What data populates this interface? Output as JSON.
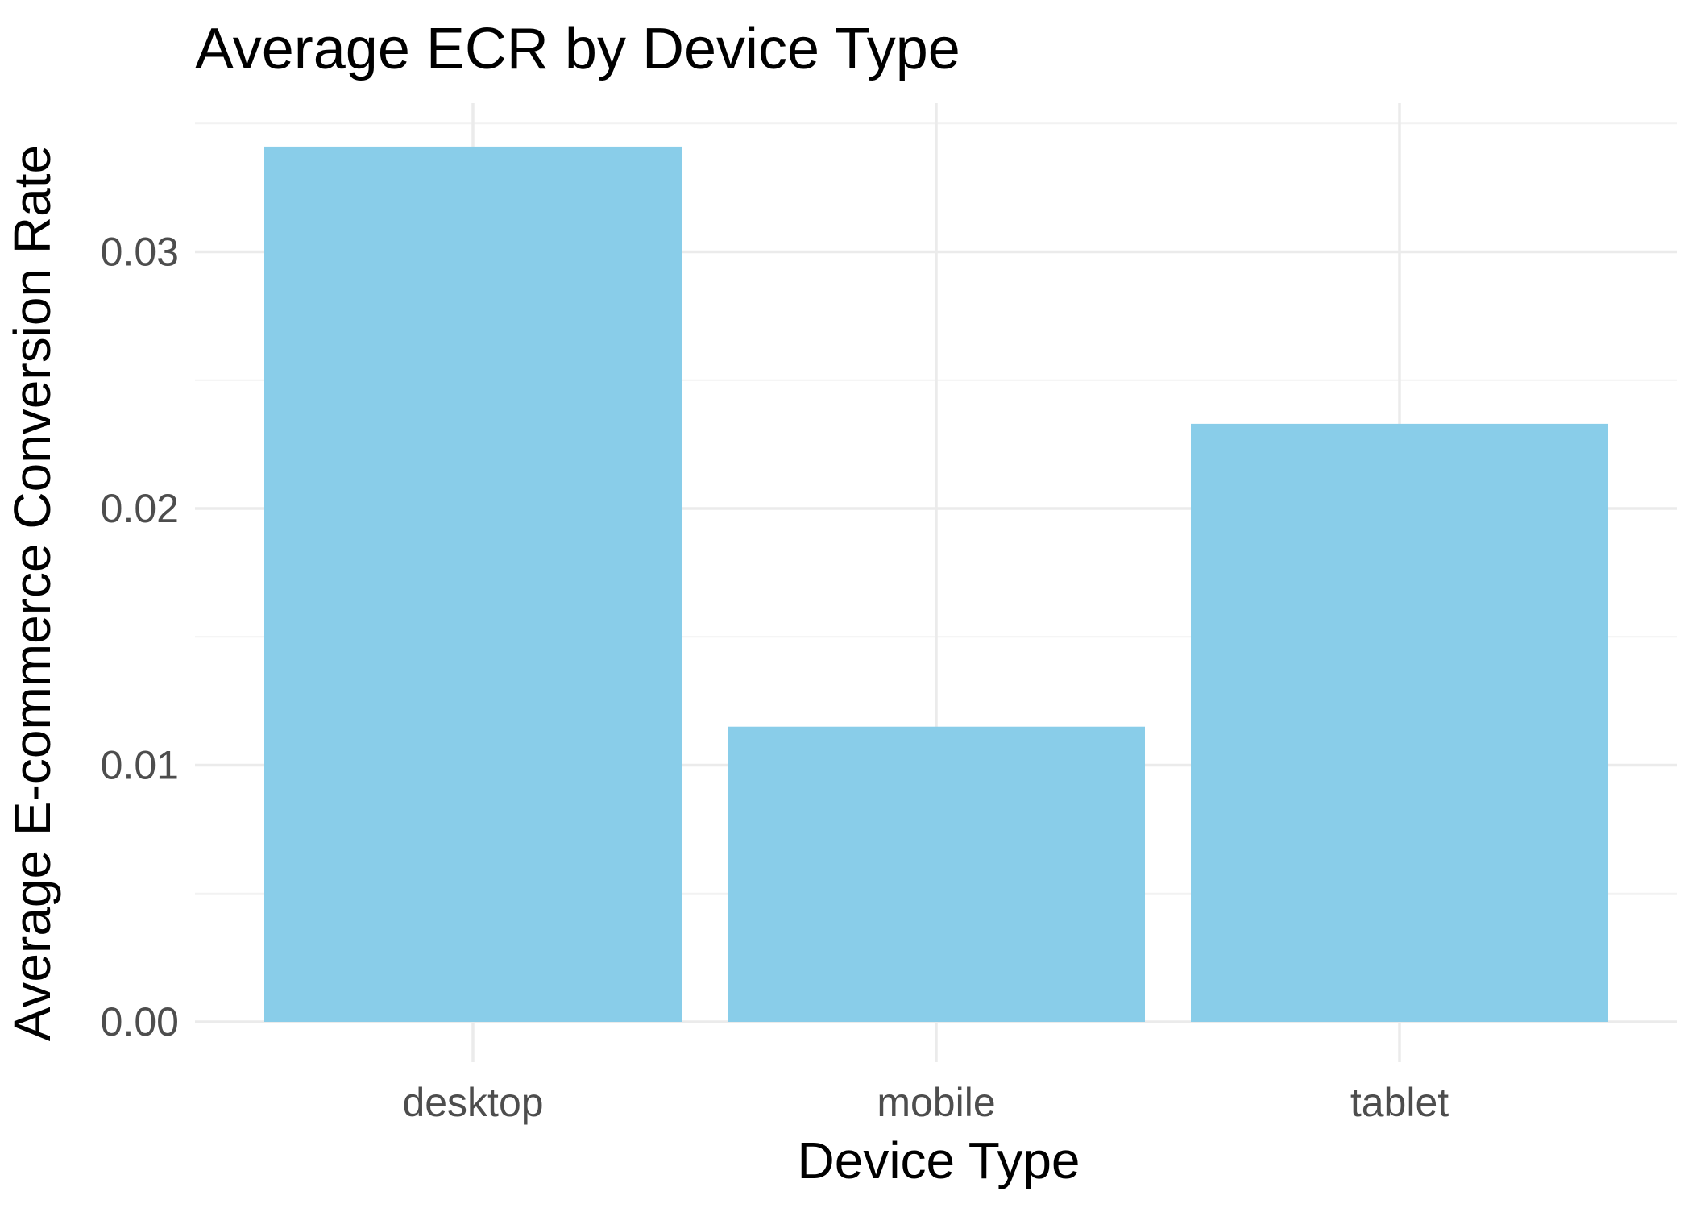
{
  "chart_data": {
    "type": "bar",
    "title": "Average ECR by Device Type",
    "xlabel": "Device Type",
    "ylabel": "Average E-commerce Conversion Rate",
    "categories": [
      "desktop",
      "mobile",
      "tablet"
    ],
    "values": [
      0.0341,
      0.0115,
      0.0233
    ],
    "ylim": [
      0,
      0.035
    ],
    "yticks": [
      0,
      0.01,
      0.02,
      0.03
    ],
    "ytick_labels": [
      "0.00",
      "0.01",
      "0.02",
      "0.03"
    ],
    "grid": true,
    "legend": "none",
    "bar_color": "#89CDE9"
  }
}
